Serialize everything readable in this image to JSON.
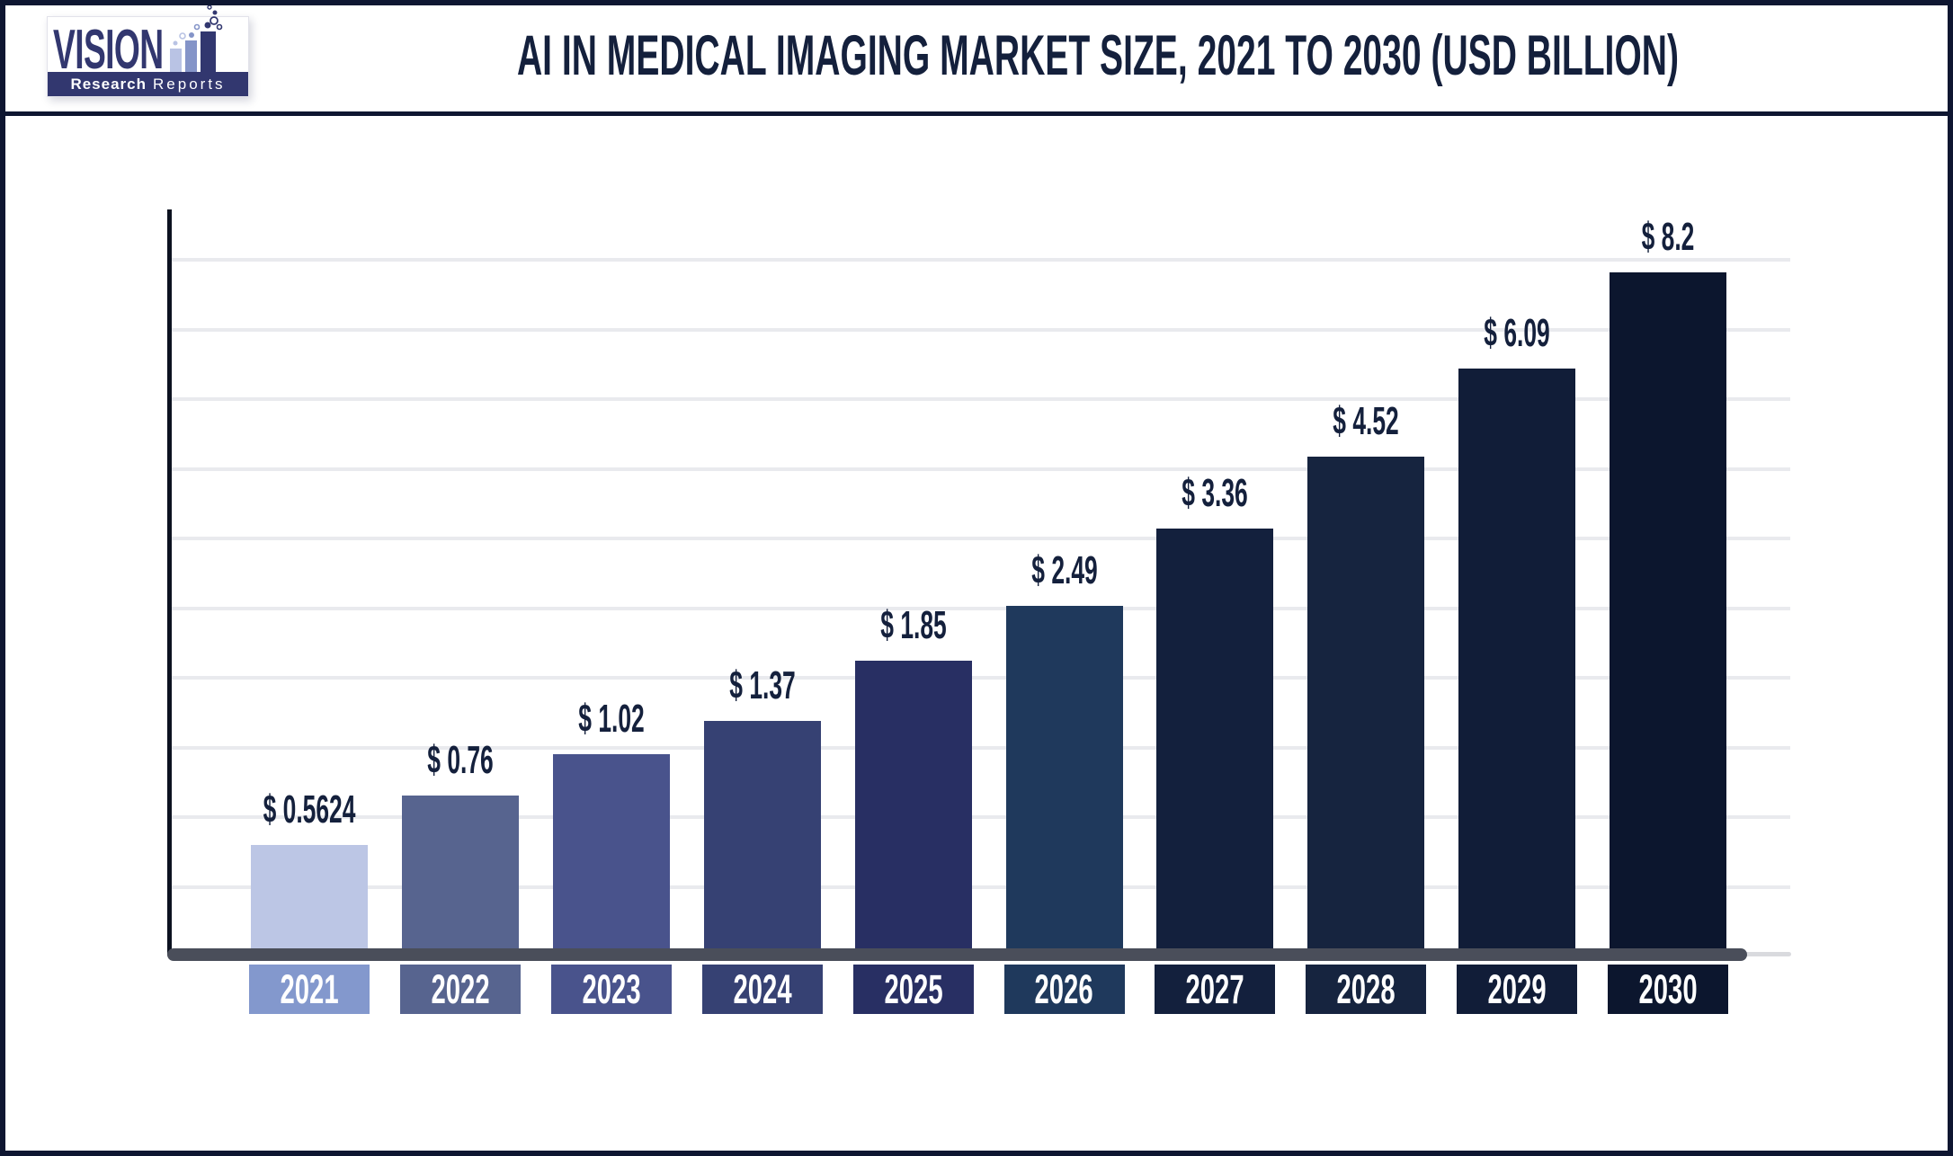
{
  "logo": {
    "brand": "VISION",
    "sub_bold": "Research",
    "sub_light": "Reports"
  },
  "chart_data": {
    "type": "bar",
    "title": "AI IN MEDICAL IMAGING MARKET SIZE, 2021 TO 2030 (USD BILLION)",
    "unit": "USD Billion",
    "categories": [
      "2021",
      "2022",
      "2023",
      "2024",
      "2025",
      "2026",
      "2027",
      "2028",
      "2029",
      "2030"
    ],
    "values": [
      0.5624,
      0.76,
      1.02,
      1.37,
      1.85,
      2.49,
      3.36,
      4.52,
      6.09,
      8.2
    ],
    "value_labels": [
      "$ 0.5624",
      "$ 0.76",
      "$ 1.02",
      "$ 1.37",
      "$ 1.85",
      "$ 2.49",
      "$ 3.36",
      "$ 4.52",
      "$ 6.09",
      "$ 8.2"
    ],
    "bar_colors": [
      "#bcc6e5",
      "#57648f",
      "#49538c",
      "#364173",
      "#282f63",
      "#1f395c",
      "#13203d",
      "#16243f",
      "#111d38",
      "#0c162e"
    ],
    "tick_box_colors": [
      "#8398cd",
      "#57648f",
      "#49538c",
      "#364173",
      "#282f63",
      "#1f395c",
      "#13203d",
      "#16243f",
      "#111d38",
      "#0c162e"
    ],
    "bar_height_ratios": [
      0.161,
      0.233,
      0.294,
      0.343,
      0.431,
      0.511,
      0.625,
      0.73,
      0.859,
      1.0
    ],
    "grid": true,
    "gridline_count": 10,
    "y_axis_tick_labels": "none",
    "legend_position": "none"
  },
  "colors": {
    "frame_navy": "#0e1631",
    "title_navy": "#14203c",
    "label_navy": "#14203c",
    "axis_gray": "#4a4e5a",
    "axis_tail": "#d9dade",
    "gridline": "#e9eaee",
    "year_text": "#ffffff",
    "logo_navy": "#32376f",
    "logo_mid": "#8494c8",
    "logo_light": "#b9c3e4",
    "background": "#ffffff"
  }
}
